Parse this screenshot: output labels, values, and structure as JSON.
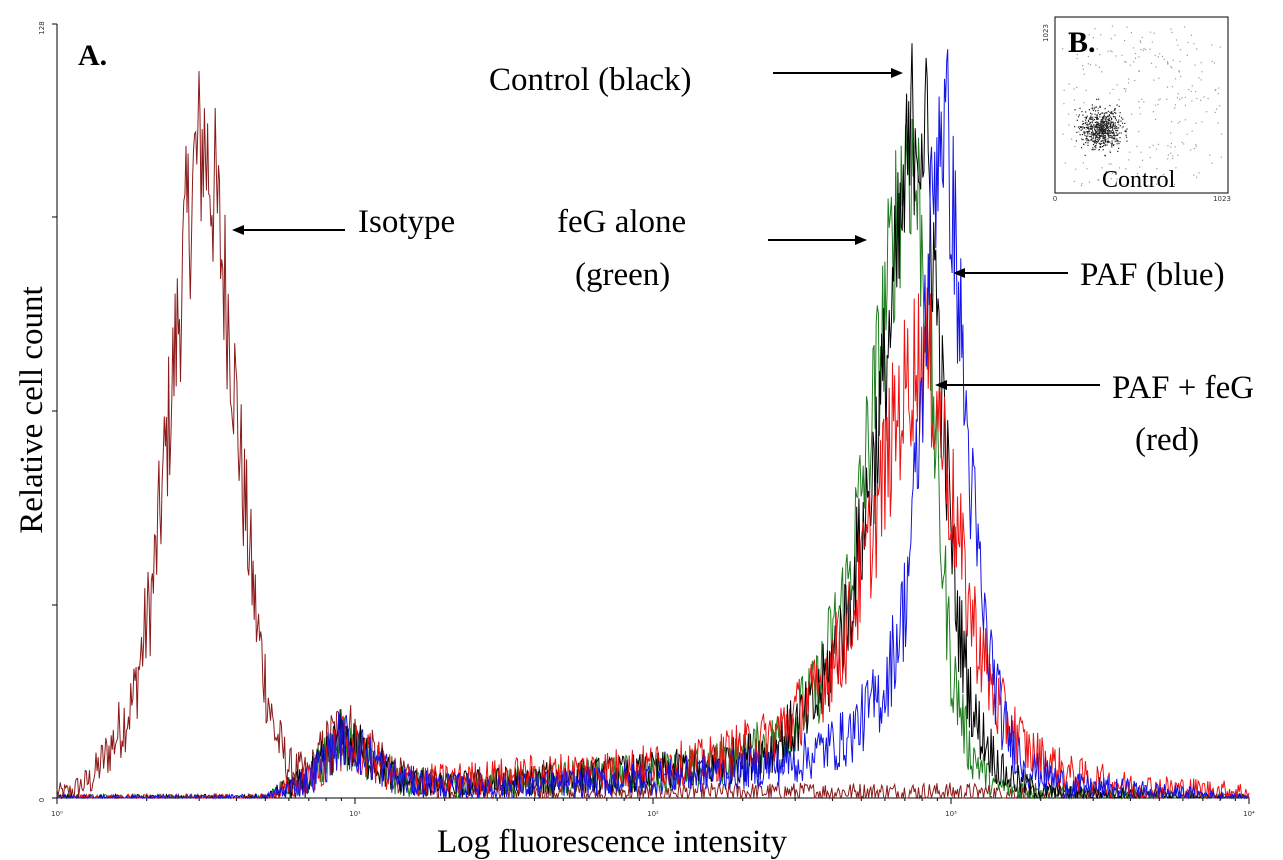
{
  "chart_data": [
    {
      "panel_label": "A.",
      "type": "line",
      "xlabel": "Log fluorescence intensity",
      "ylabel": "Relative cell count",
      "x_scale": "log",
      "xlim": [
        1,
        10000
      ],
      "ylim": [
        0,
        128
      ],
      "x_tick_labels": [
        "10⁰",
        "10¹",
        "10²",
        "10³",
        "10⁴"
      ],
      "y_tick_labels": [
        "0",
        "128"
      ],
      "series": [
        {
          "name": "Isotype",
          "color": "#8b1a1a",
          "points": [
            [
              1.1,
              1
            ],
            [
              1.3,
              3
            ],
            [
              1.5,
              8
            ],
            [
              1.8,
              16
            ],
            [
              2.1,
              35
            ],
            [
              2.4,
              65
            ],
            [
              2.7,
              92
            ],
            [
              2.9,
              104
            ],
            [
              3.1,
              109
            ],
            [
              3.4,
              99
            ],
            [
              3.8,
              78
            ],
            [
              4.2,
              52
            ],
            [
              4.7,
              28
            ],
            [
              5.3,
              12
            ],
            [
              6,
              5
            ],
            [
              7,
              4
            ],
            [
              8.3,
              10
            ],
            [
              9.3,
              12
            ],
            [
              10.5,
              9
            ],
            [
              12,
              6
            ],
            [
              15,
              3
            ],
            [
              20,
              2
            ],
            [
              40,
              1
            ],
            [
              100,
              1
            ],
            [
              1000,
              1
            ],
            [
              10000,
              0
            ]
          ]
        },
        {
          "name": "Control (black)",
          "color": "#000000",
          "points": [
            [
              1,
              0
            ],
            [
              5,
              0
            ],
            [
              7,
              3
            ],
            [
              9,
              10
            ],
            [
              11,
              7
            ],
            [
              14,
              3
            ],
            [
              20,
              2
            ],
            [
              40,
              3
            ],
            [
              80,
              4
            ],
            [
              150,
              5
            ],
            [
              250,
              8
            ],
            [
              350,
              15
            ],
            [
              450,
              30
            ],
            [
              550,
              55
            ],
            [
              650,
              85
            ],
            [
              750,
              113
            ],
            [
              820,
              110
            ],
            [
              880,
              88
            ],
            [
              950,
              60
            ],
            [
              1050,
              30
            ],
            [
              1200,
              13
            ],
            [
              1500,
              4
            ],
            [
              2000,
              1
            ],
            [
              10000,
              0
            ]
          ]
        },
        {
          "name": "feG alone (green)",
          "color": "#1e7d1e",
          "points": [
            [
              1,
              0
            ],
            [
              5,
              0
            ],
            [
              7,
              3
            ],
            [
              9,
              10
            ],
            [
              11,
              7
            ],
            [
              14,
              3
            ],
            [
              20,
              2
            ],
            [
              40,
              3
            ],
            [
              80,
              4
            ],
            [
              150,
              5
            ],
            [
              250,
              9
            ],
            [
              350,
              17
            ],
            [
              450,
              35
            ],
            [
              550,
              65
            ],
            [
              650,
              95
            ],
            [
              720,
              108
            ],
            [
              780,
              98
            ],
            [
              850,
              75
            ],
            [
              920,
              45
            ],
            [
              1000,
              22
            ],
            [
              1150,
              8
            ],
            [
              1400,
              2
            ],
            [
              2000,
              1
            ],
            [
              10000,
              0
            ]
          ]
        },
        {
          "name": "PAF (blue)",
          "color": "#1414e6",
          "points": [
            [
              1,
              0
            ],
            [
              5,
              0
            ],
            [
              7,
              3
            ],
            [
              9,
              10
            ],
            [
              11,
              7
            ],
            [
              14,
              3
            ],
            [
              20,
              2
            ],
            [
              40,
              2
            ],
            [
              80,
              3
            ],
            [
              150,
              4
            ],
            [
              300,
              6
            ],
            [
              450,
              10
            ],
            [
              600,
              18
            ],
            [
              700,
              32
            ],
            [
              780,
              58
            ],
            [
              850,
              92
            ],
            [
              920,
              114
            ],
            [
              980,
              108
            ],
            [
              1050,
              86
            ],
            [
              1150,
              55
            ],
            [
              1300,
              28
            ],
            [
              1500,
              12
            ],
            [
              1800,
              5
            ],
            [
              2500,
              2
            ],
            [
              10000,
              0
            ]
          ]
        },
        {
          "name": "PAF + feG (red)",
          "color": "#ee1111",
          "points": [
            [
              1,
              0
            ],
            [
              5,
              0
            ],
            [
              7,
              3
            ],
            [
              9,
              9
            ],
            [
              11,
              7
            ],
            [
              14,
              3
            ],
            [
              20,
              3
            ],
            [
              40,
              4
            ],
            [
              80,
              5
            ],
            [
              150,
              6
            ],
            [
              250,
              10
            ],
            [
              350,
              17
            ],
            [
              450,
              27
            ],
            [
              550,
              45
            ],
            [
              650,
              62
            ],
            [
              750,
              72
            ],
            [
              820,
              73
            ],
            [
              900,
              66
            ],
            [
              1000,
              50
            ],
            [
              1150,
              32
            ],
            [
              1400,
              16
            ],
            [
              1800,
              8
            ],
            [
              2500,
              4
            ],
            [
              4000,
              2
            ],
            [
              10000,
              1
            ]
          ]
        }
      ],
      "annotations": [
        {
          "text": "Isotype",
          "points_to": "Isotype"
        },
        {
          "text": "Control (black)",
          "points_to": "Control (black)"
        },
        {
          "text": "feG alone",
          "text2": "(green)",
          "points_to": "feG alone (green)"
        },
        {
          "text": "PAF (blue)",
          "points_to": "PAF (blue)"
        },
        {
          "text": "PAF + feG",
          "text2": "(red)",
          "points_to": "PAF + feG (red)"
        }
      ]
    },
    {
      "panel_label": "B.",
      "type": "scatter",
      "caption": "Control",
      "axis_labels": [
        "0",
        "1023",
        "1023"
      ]
    }
  ]
}
